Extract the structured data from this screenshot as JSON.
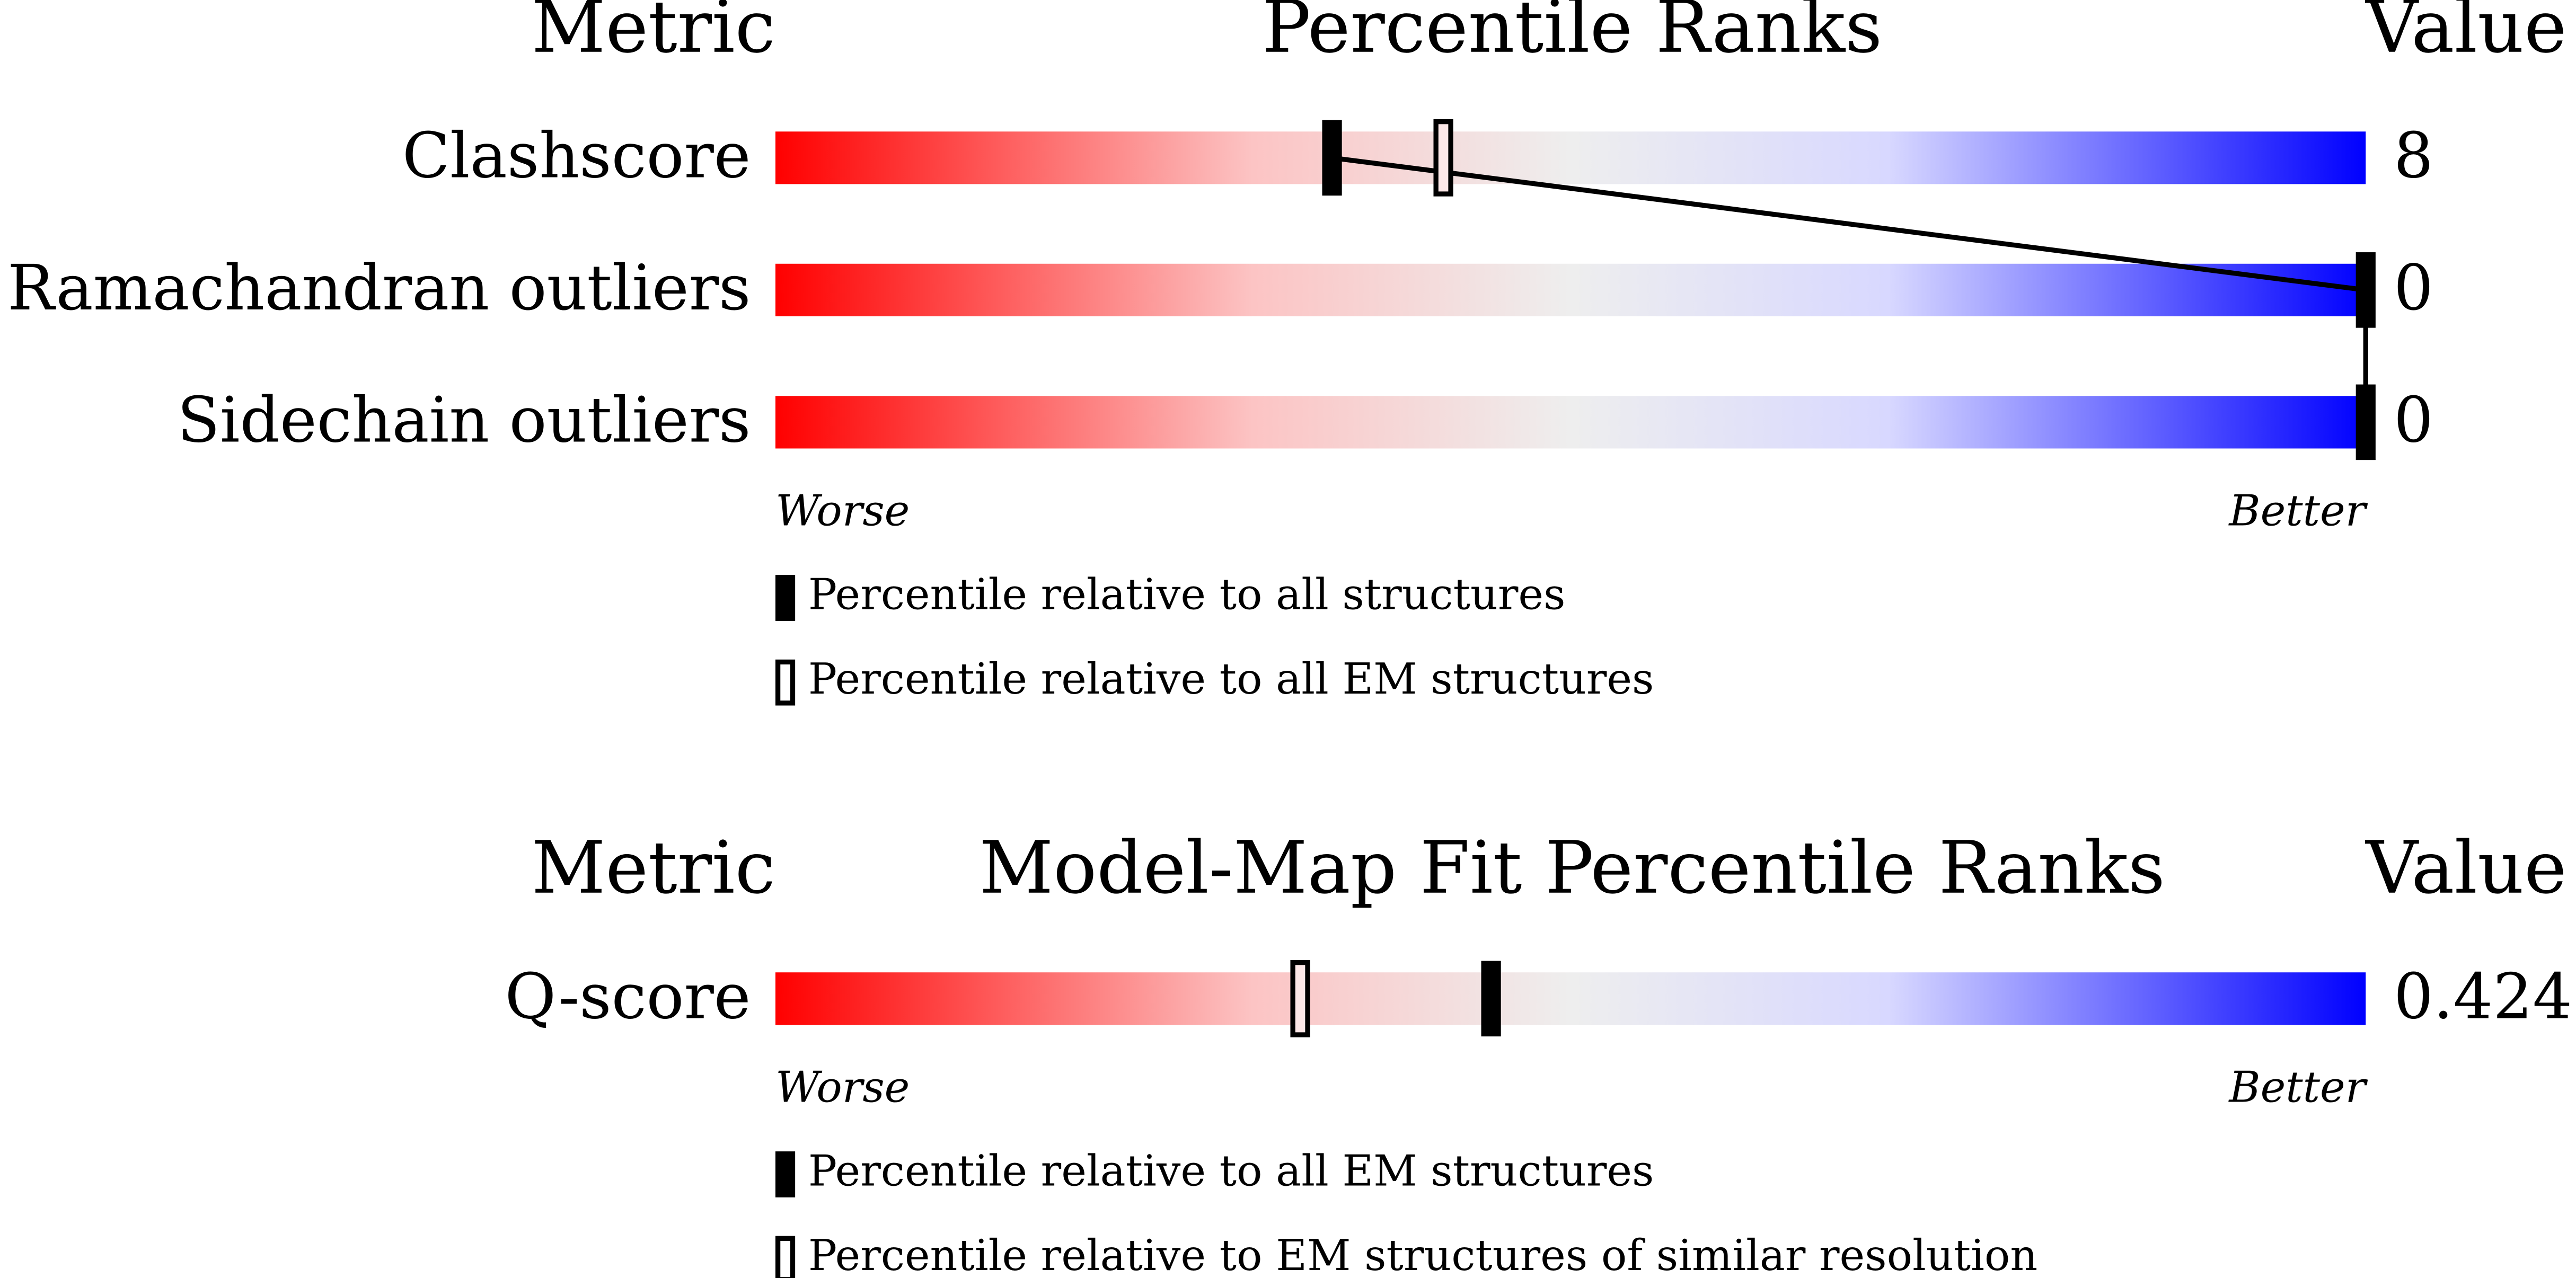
{
  "chart_data": [
    {
      "type": "percentile",
      "metric_header": "Metric",
      "title": "Percentile Ranks",
      "value_header": "Value",
      "metrics": [
        "Clashscore",
        "Ramachandran outliers",
        "Sidechain outliers"
      ],
      "metric_values": [
        8,
        0,
        0
      ],
      "xlim": [
        0,
        100
      ],
      "worse_label": "Worse",
      "better_label": "Better",
      "series": [
        {
          "name": "Percentile relative to all structures",
          "style": "filled",
          "color": "#000000",
          "values": [
            35,
            100,
            100
          ]
        },
        {
          "name": "Percentile relative to all EM structures",
          "style": "hollow",
          "color": "#000000",
          "values": [
            42,
            null,
            null
          ]
        }
      ]
    },
    {
      "type": "percentile",
      "metric_header": "Metric",
      "title": "Model-Map Fit Percentile Ranks",
      "value_header": "Value",
      "metrics": [
        "Q-score"
      ],
      "metric_values": [
        0.424
      ],
      "xlim": [
        0,
        100
      ],
      "worse_label": "Worse",
      "better_label": "Better",
      "series": [
        {
          "name": "Percentile relative to all EM structures",
          "style": "filled",
          "color": "#000000",
          "values": [
            45
          ]
        },
        {
          "name": "Percentile relative to EM structures of similar resolution",
          "style": "hollow",
          "color": "#000000",
          "values": [
            33
          ]
        }
      ]
    }
  ]
}
